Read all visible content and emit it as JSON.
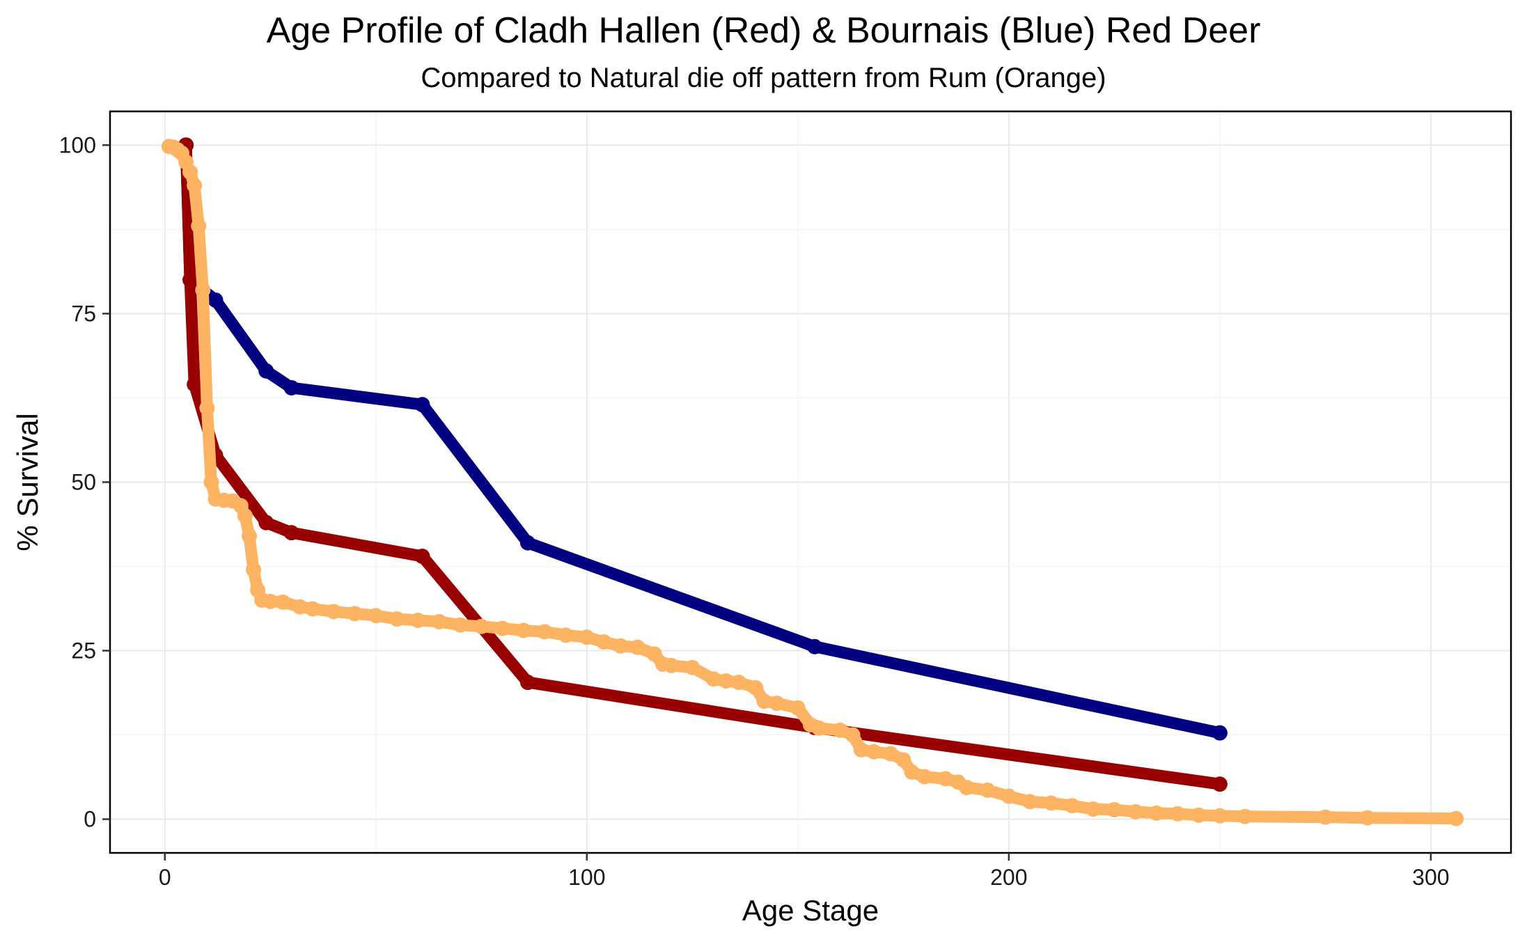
{
  "chart_data": {
    "type": "line",
    "title": "Age Profile of Cladh Hallen (Red) & Bournais (Blue) Red Deer",
    "subtitle": "Compared to Natural die off pattern from Rum (Orange)",
    "xlabel": "Age Stage",
    "ylabel": "% Survival",
    "xlim": [
      -13,
      319
    ],
    "ylim": [
      -5,
      105
    ],
    "xticks": [
      0,
      100,
      200,
      300
    ],
    "yticks": [
      0,
      25,
      50,
      75,
      100
    ],
    "grid": true,
    "legend": "none",
    "series": [
      {
        "color": "#000080",
        "x": [
          5,
          6,
          12,
          24,
          30,
          61,
          86,
          154,
          250
        ],
        "y": [
          100,
          80,
          77,
          66.5,
          64,
          61.5,
          41,
          25.6,
          12.8
        ]
      },
      {
        "color": "#990000",
        "x": [
          5,
          6,
          7,
          12,
          24,
          30,
          61,
          86,
          154,
          250
        ],
        "y": [
          100,
          80,
          64.5,
          54,
          44,
          42.5,
          39,
          20.3,
          13.6,
          5.2
        ]
      },
      {
        "color": "#FDB462",
        "x": [
          1,
          2,
          3,
          4,
          5,
          6,
          7,
          8,
          9,
          10,
          11,
          12,
          14,
          16,
          18,
          19,
          20,
          21,
          22,
          23,
          25,
          28,
          32,
          35,
          40,
          45,
          50,
          55,
          60,
          65,
          70,
          75,
          80,
          85,
          90,
          95,
          100,
          104,
          108,
          112,
          116,
          118,
          120,
          125,
          130,
          133,
          136,
          140,
          142,
          145,
          150,
          153,
          155,
          160,
          163,
          165,
          168,
          172,
          175,
          177,
          180,
          185,
          188,
          190,
          195,
          200,
          205,
          210,
          215,
          220,
          225,
          230,
          235,
          240,
          245,
          250,
          256,
          275,
          285,
          306
        ],
        "y": [
          99.8,
          99.7,
          99.3,
          98.8,
          97.5,
          96,
          94,
          88,
          78.5,
          61,
          50,
          47.5,
          47.3,
          47.2,
          46.5,
          45,
          42,
          37,
          34,
          32.5,
          32.3,
          32.2,
          31.5,
          31.2,
          30.8,
          30.5,
          30.2,
          29.7,
          29.5,
          29.3,
          28.8,
          28.6,
          28.3,
          28,
          27.8,
          27.3,
          27,
          26.3,
          25.7,
          25.5,
          24.5,
          23,
          22.8,
          22.5,
          20.8,
          20.5,
          20.3,
          19.5,
          17.5,
          17.2,
          16.5,
          14,
          13.5,
          13.2,
          12.5,
          10.3,
          10,
          9.7,
          8.8,
          7,
          6.3,
          6,
          5.5,
          4.7,
          4.3,
          3.4,
          2.6,
          2.4,
          2,
          1.5,
          1.4,
          1.1,
          0.9,
          0.8,
          0.6,
          0.5,
          0.4,
          0.3,
          0.2,
          0.1
        ]
      }
    ]
  }
}
